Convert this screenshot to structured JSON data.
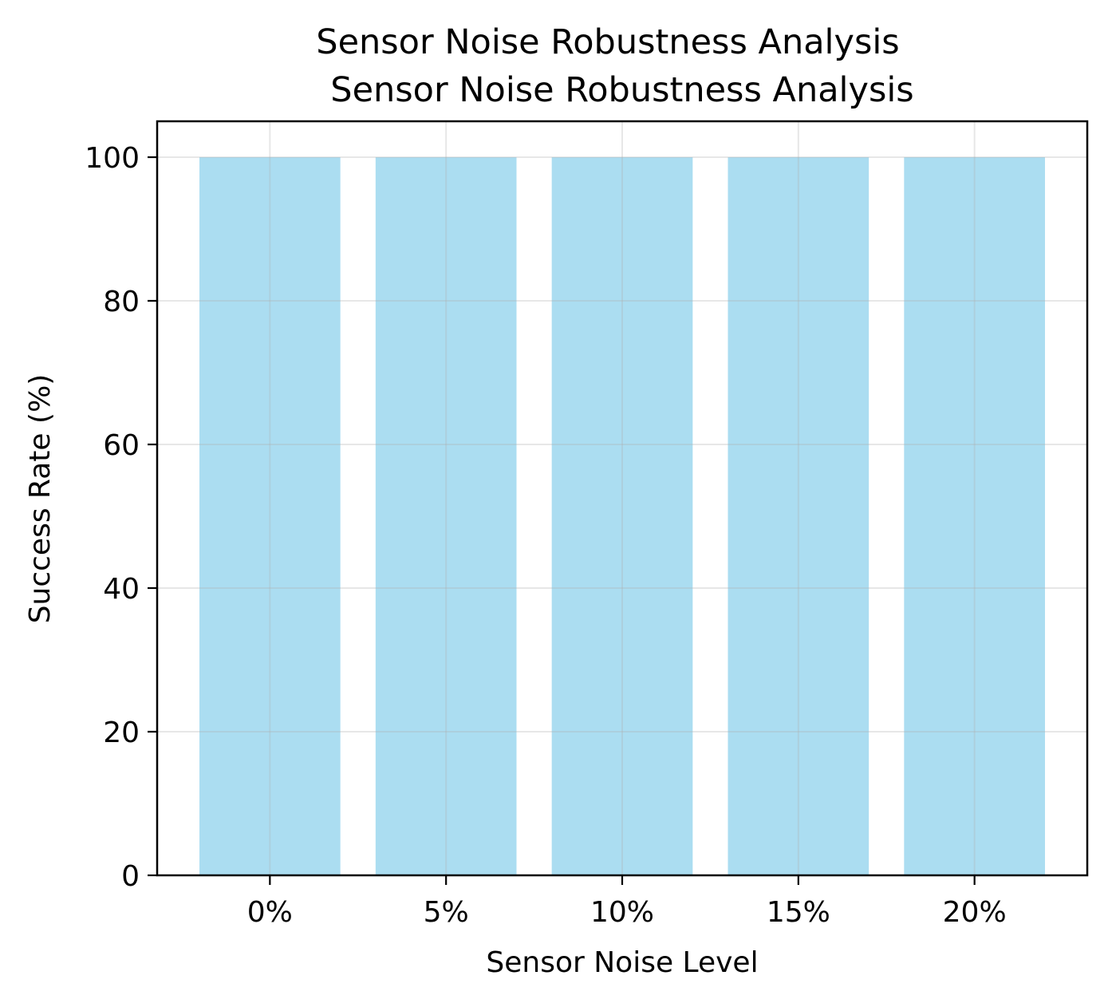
{
  "chart_data": {
    "type": "bar",
    "title": "Sensor Noise Robustness Analysis",
    "subtitle": "Sensor Noise Robustness Analysis",
    "xlabel": "Sensor Noise Level",
    "ylabel": "Success Rate (%)",
    "categories": [
      "0%",
      "5%",
      "10%",
      "15%",
      "20%"
    ],
    "values": [
      100,
      100,
      100,
      100,
      100
    ],
    "ylim": [
      0,
      105
    ],
    "yticks": [
      0,
      20,
      40,
      60,
      80,
      100
    ],
    "grid": true,
    "bar_color": "#87CEEB",
    "legend": "none"
  }
}
